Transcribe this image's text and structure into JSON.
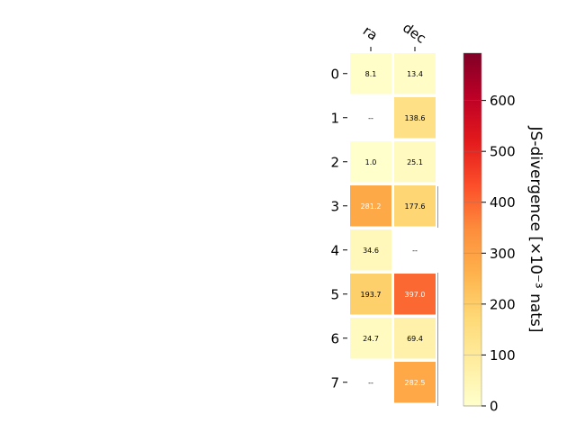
{
  "chart_data": {
    "type": "heatmap",
    "columns": [
      "ra",
      "dec"
    ],
    "rows": [
      "0",
      "1",
      "2",
      "3",
      "4",
      "5",
      "6",
      "7"
    ],
    "values": [
      [
        8.1,
        13.4
      ],
      [
        null,
        138.6
      ],
      [
        1.0,
        25.1
      ],
      [
        281.2,
        177.6
      ],
      [
        34.6,
        null
      ],
      [
        193.7,
        397.0
      ],
      [
        24.7,
        69.4
      ],
      [
        null,
        282.5
      ]
    ],
    "cell_labels": [
      [
        "8.1",
        "13.4"
      ],
      [
        "--",
        "138.6"
      ],
      [
        "1.0",
        "25.1"
      ],
      [
        "281.2",
        "177.6"
      ],
      [
        "34.6",
        "--"
      ],
      [
        "193.7",
        "397.0"
      ],
      [
        "24.7",
        "69.4"
      ],
      [
        "--",
        "282.5"
      ]
    ],
    "colorbar": {
      "label": "JS-divergence [×10⁻³ nats]",
      "range": [
        0,
        693
      ],
      "ticks": [
        "0",
        "100",
        "200",
        "300",
        "400",
        "500",
        "600"
      ],
      "tick_values": [
        0,
        100,
        200,
        300,
        400,
        500,
        600
      ],
      "colormap": "YlOrRd"
    }
  }
}
